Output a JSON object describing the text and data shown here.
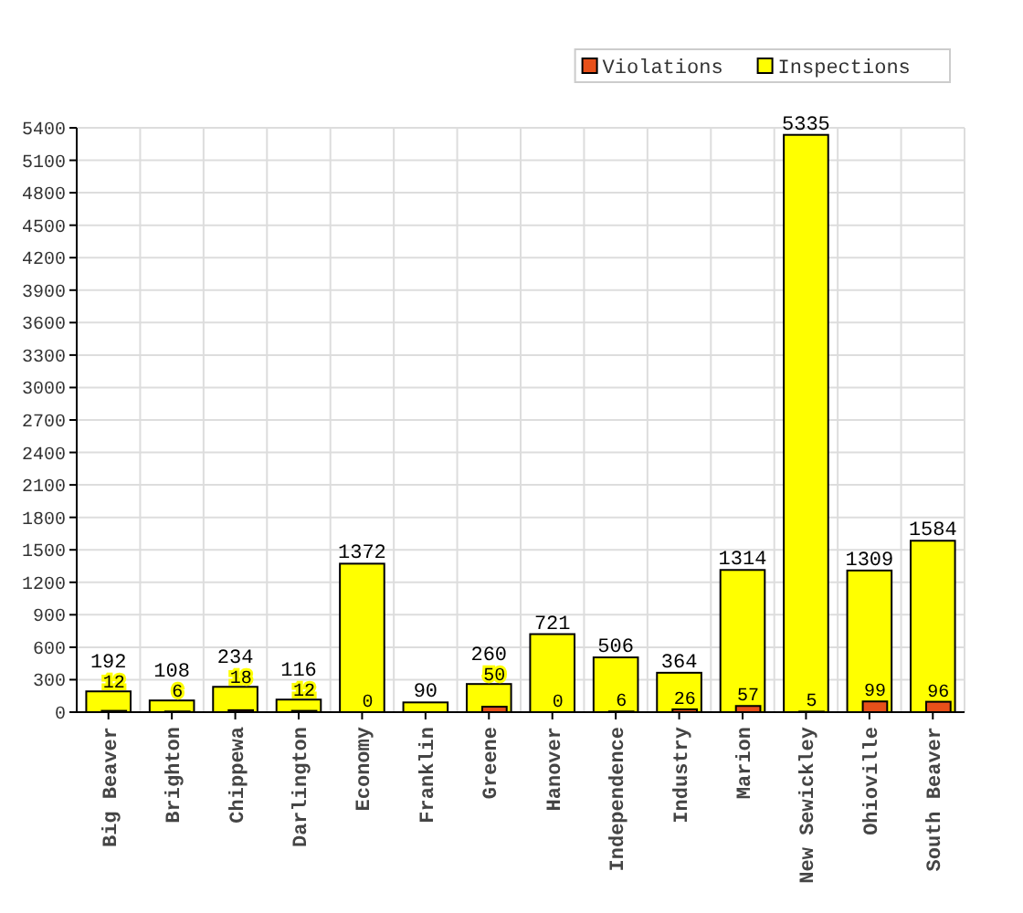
{
  "chart_data": {
    "type": "bar",
    "categories": [
      "Big Beaver",
      "Brighton",
      "Chippewa",
      "Darlington",
      "Economy",
      "Franklin",
      "Greene",
      "Hanover",
      "Independence",
      "Industry",
      "Marion",
      "New Sewickley",
      "Ohioville",
      "South Beaver"
    ],
    "series": [
      {
        "name": "Inspections",
        "color": "#ffff00",
        "values": [
          192,
          108,
          234,
          116,
          1372,
          90,
          260,
          721,
          506,
          364,
          1314,
          5335,
          1309,
          1584
        ]
      },
      {
        "name": "Violations",
        "color": "#e8501a",
        "values": [
          12,
          6,
          18,
          12,
          0,
          null,
          50,
          0,
          6,
          26,
          57,
          5,
          99,
          96
        ]
      }
    ],
    "ylim": [
      0,
      5400
    ],
    "yticks": [
      0,
      300,
      600,
      900,
      1200,
      1500,
      1800,
      2100,
      2400,
      2700,
      3000,
      3300,
      3600,
      3900,
      4200,
      4500,
      4800,
      5100,
      5400
    ],
    "grid": true,
    "legend": "top right",
    "data_labels": true
  }
}
